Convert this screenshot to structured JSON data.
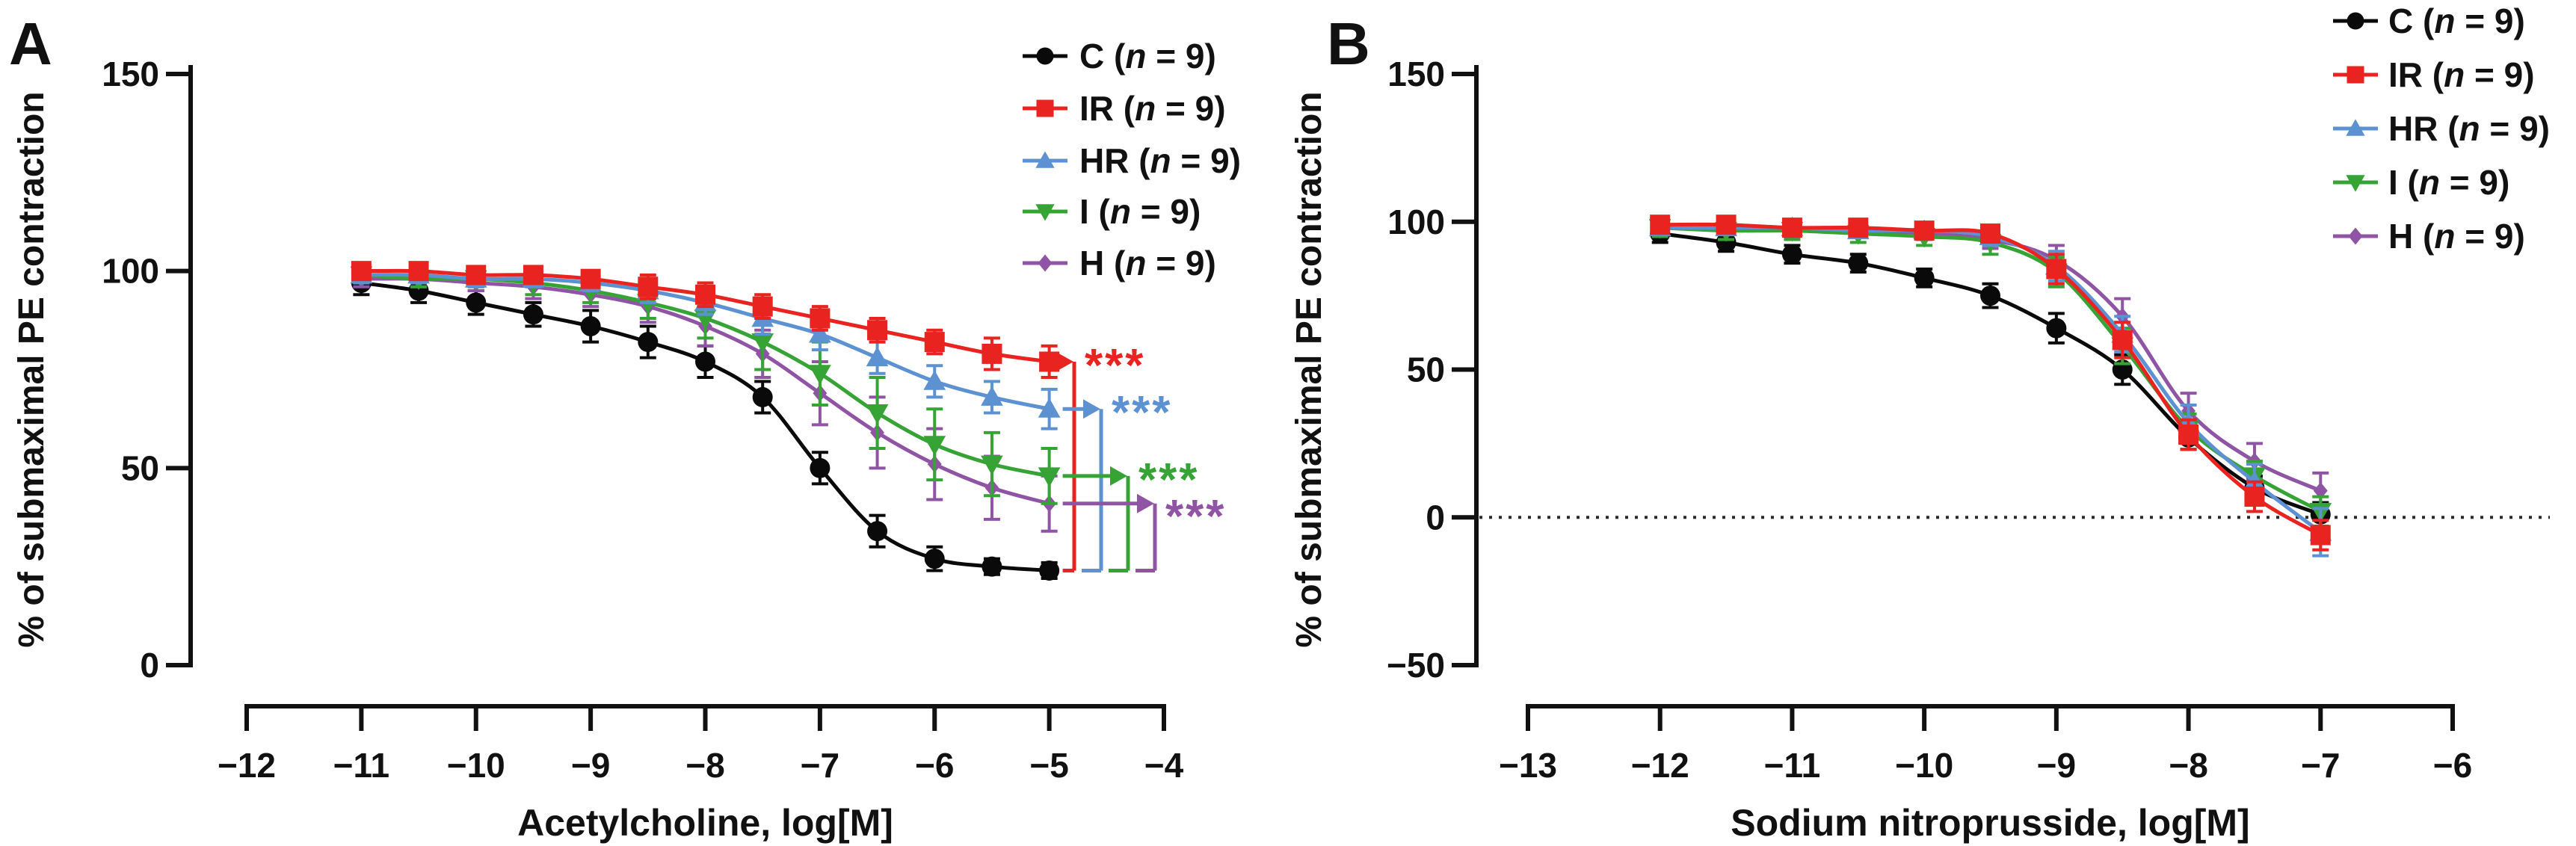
{
  "chart_data": [
    {
      "type": "line",
      "panel_label": "A",
      "xlabel": "Acetylcholine, log[M]",
      "ylabel": "% of submaximal PE contraction",
      "x_ticks": [
        -12,
        -11,
        -10,
        -9,
        -8,
        -7,
        -6,
        -5,
        -4
      ],
      "y_ticks": [
        0,
        50,
        100,
        150
      ],
      "xlim": [
        -12,
        -4
      ],
      "ylim": [
        0,
        150
      ],
      "grid": false,
      "zero_dotted_line": false,
      "legend_position": "top-right",
      "x": [
        -11,
        -10.5,
        -10,
        -9.5,
        -9,
        -8.5,
        -8,
        -7.5,
        -7,
        -6.5,
        -6,
        -5.5,
        -5
      ],
      "series": [
        {
          "name": "C",
          "label": "C",
          "n_var": "n",
          "n_eq": " = 9",
          "color": "#0a0a0a",
          "marker": "circle",
          "values": [
            97,
            95,
            92,
            89,
            86,
            82,
            77,
            68,
            50,
            34,
            27,
            25,
            24
          ],
          "sem": [
            3,
            3,
            3,
            3,
            4,
            4,
            4,
            4,
            4,
            4,
            3,
            2,
            2
          ]
        },
        {
          "name": "IR",
          "label": "IR",
          "n_var": "n",
          "n_eq": " = 9",
          "color": "#e9231f",
          "marker": "square",
          "values": [
            100,
            100,
            99,
            99,
            98,
            96,
            94,
            91,
            88,
            85,
            82,
            79,
            77
          ],
          "sem": [
            2,
            2,
            2,
            2,
            2,
            3,
            3,
            3,
            3,
            3,
            3,
            4,
            4
          ]
        },
        {
          "name": "HR",
          "label": "HR",
          "n_var": "n",
          "n_eq": " = 9",
          "color": "#5c92d2",
          "marker": "triangle-up",
          "values": [
            99,
            99,
            98,
            98,
            97,
            95,
            92,
            88,
            84,
            78,
            72,
            68,
            65
          ],
          "sem": [
            2,
            2,
            2,
            2,
            2,
            3,
            3,
            4,
            4,
            4,
            4,
            4,
            5
          ]
        },
        {
          "name": "I",
          "label": "I",
          "n_var": "n",
          "n_eq": " = 9",
          "color": "#35a435",
          "marker": "triangle-down",
          "values": [
            99,
            98,
            98,
            97,
            95,
            92,
            88,
            82,
            74,
            64,
            56,
            51,
            48
          ],
          "sem": [
            2,
            2,
            2,
            3,
            3,
            4,
            5,
            7,
            8,
            9,
            9,
            8,
            7
          ]
        },
        {
          "name": "H",
          "label": "H",
          "n_var": "n",
          "n_eq": " = 9",
          "color": "#9054a4",
          "marker": "diamond",
          "values": [
            98,
            98,
            97,
            96,
            94,
            91,
            86,
            79,
            69,
            59,
            51,
            45,
            41
          ],
          "sem": [
            2,
            2,
            2,
            3,
            3,
            4,
            5,
            6,
            8,
            9,
            9,
            8,
            7
          ]
        }
      ],
      "significance": [
        {
          "series": "IR",
          "vs": "C",
          "stars": "***"
        },
        {
          "series": "HR",
          "vs": "C",
          "stars": "***"
        },
        {
          "series": "I",
          "vs": "C",
          "stars": "***"
        },
        {
          "series": "H",
          "vs": "C",
          "stars": "***"
        }
      ]
    },
    {
      "type": "line",
      "panel_label": "B",
      "xlabel": "Sodium nitroprusside, log[M]",
      "ylabel": "% of submaximal PE contraction",
      "x_ticks": [
        -13,
        -12,
        -11,
        -10,
        -9,
        -8,
        -7,
        -6
      ],
      "y_ticks": [
        -50,
        0,
        50,
        100,
        150
      ],
      "xlim": [
        -13,
        -6
      ],
      "ylim": [
        -50,
        150
      ],
      "grid": false,
      "zero_dotted_line": true,
      "legend_position": "top-right",
      "x": [
        -12,
        -11.5,
        -11,
        -10.5,
        -10,
        -9.5,
        -9,
        -8.5,
        -8,
        -7.5,
        -7
      ],
      "series": [
        {
          "name": "C",
          "label": "C",
          "n_var": "n",
          "n_eq": " = 9",
          "color": "#0a0a0a",
          "marker": "circle",
          "values": [
            96,
            93,
            89,
            86,
            81,
            75,
            64,
            50,
            27,
            10,
            1
          ],
          "sem": [
            3,
            3,
            3,
            3,
            3,
            4,
            5,
            5,
            4,
            4,
            4
          ]
        },
        {
          "name": "IR",
          "label": "IR",
          "n_var": "n",
          "n_eq": " = 9",
          "color": "#e9231f",
          "marker": "square",
          "values": [
            99,
            99,
            98,
            98,
            97,
            96,
            84,
            60,
            28,
            7,
            -6
          ],
          "sem": [
            2,
            2,
            2,
            2,
            2,
            2,
            5,
            6,
            5,
            5,
            5
          ]
        },
        {
          "name": "HR",
          "label": "HR",
          "n_var": "n",
          "n_eq": " = 9",
          "color": "#5c92d2",
          "marker": "triangle-up",
          "values": [
            98,
            98,
            98,
            97,
            97,
            95,
            85,
            62,
            32,
            12,
            -5
          ],
          "sem": [
            2,
            2,
            2,
            2,
            2,
            3,
            5,
            6,
            6,
            6,
            8
          ]
        },
        {
          "name": "I",
          "label": "I",
          "n_var": "n",
          "n_eq": " = 9",
          "color": "#35a435",
          "marker": "triangle-down",
          "values": [
            98,
            97,
            97,
            96,
            95,
            93,
            83,
            58,
            30,
            14,
            2
          ],
          "sem": [
            3,
            3,
            3,
            3,
            3,
            4,
            5,
            6,
            5,
            5,
            5
          ]
        },
        {
          "name": "H",
          "label": "H",
          "n_var": "n",
          "n_eq": " = 9",
          "color": "#9054a4",
          "marker": "diamond",
          "values": [
            98,
            98,
            97,
            97,
            96,
            94,
            87,
            68,
            36,
            19,
            9
          ],
          "sem": [
            2,
            2,
            2,
            2,
            2,
            3,
            5,
            6,
            6,
            6,
            6
          ]
        }
      ],
      "significance": []
    }
  ]
}
